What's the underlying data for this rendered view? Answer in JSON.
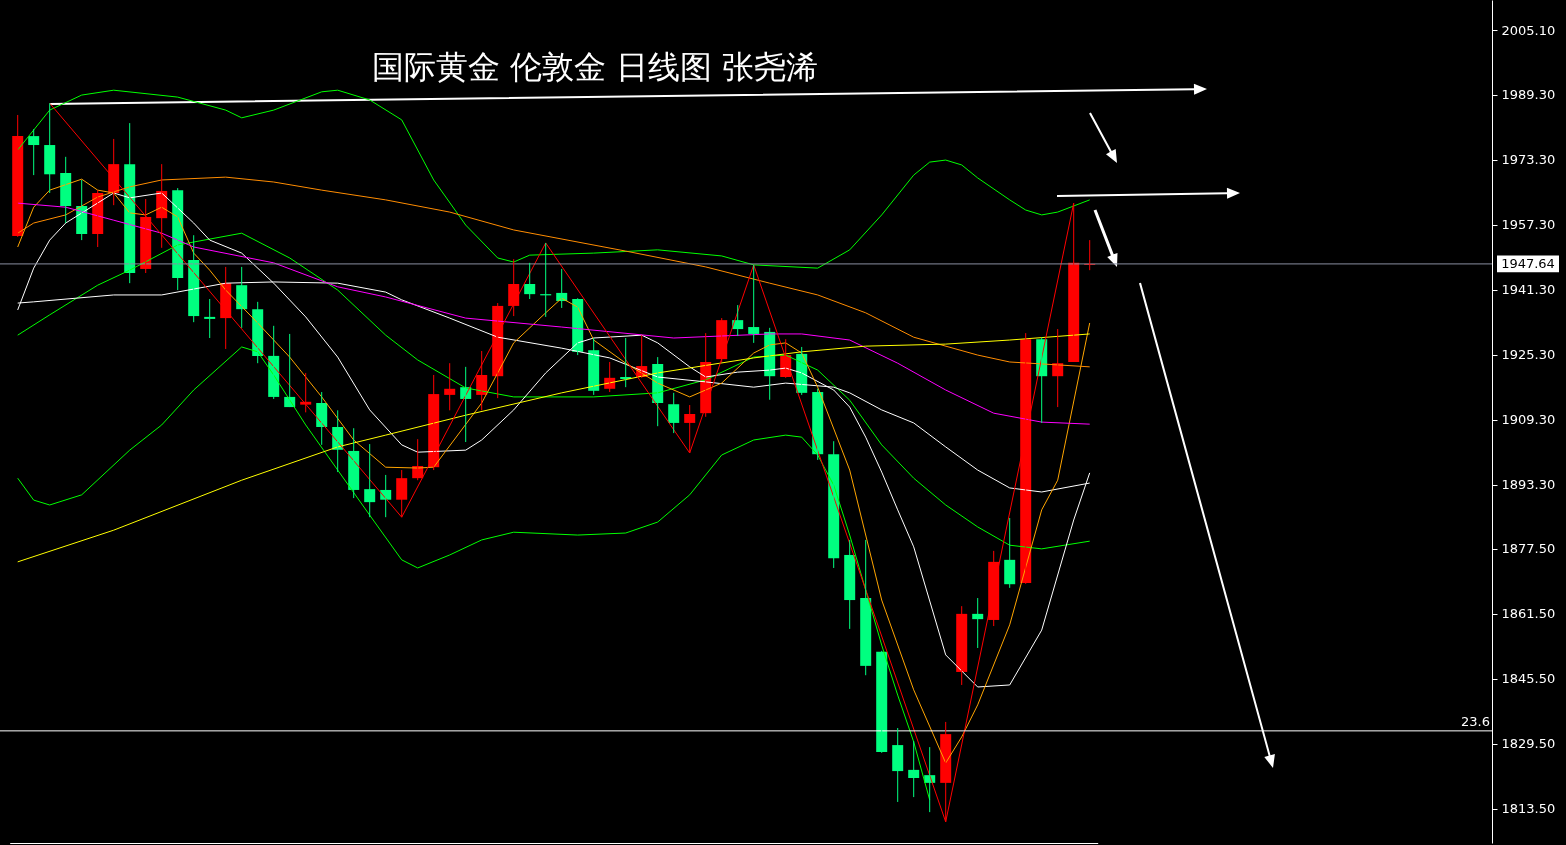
{
  "chart_data": {
    "type": "candlestick",
    "title": "国际黄金 伦敦金 日线图 张尧浠",
    "categories": [
      null,
      null,
      null,
      null,
      null,
      null,
      null,
      null,
      null,
      null,
      null,
      null,
      null,
      null,
      null,
      null,
      null,
      null,
      null,
      null,
      null,
      null,
      null,
      null,
      null,
      null,
      null,
      null,
      null,
      null,
      null,
      null,
      null,
      null,
      null,
      null,
      null,
      null,
      null,
      null,
      null,
      null,
      null,
      null,
      null,
      null,
      null,
      null,
      null,
      null,
      null,
      null,
      null,
      null,
      null,
      null,
      null,
      null,
      null,
      null,
      null,
      null,
      null,
      null,
      null,
      null,
      null,
      null
    ],
    "ohlc": [
      [
        1954.5,
        1984.3,
        1954.3,
        1979.1
      ],
      [
        1979.1,
        1980.8,
        1969.5,
        1976.9
      ],
      [
        1976.9,
        1987.2,
        1965.1,
        1969.7
      ],
      [
        1970.0,
        1974.0,
        1957.7,
        1961.9
      ],
      [
        1961.9,
        1968.3,
        1953.5,
        1955.0
      ],
      [
        1955.0,
        1965.8,
        1951.8,
        1965.1
      ],
      [
        1965.1,
        1978.4,
        1962.1,
        1972.2
      ],
      [
        1972.2,
        1982.3,
        1942.9,
        1945.4
      ],
      [
        1946.4,
        1963.6,
        1945.4,
        1959.2
      ],
      [
        1958.9,
        1972.2,
        1951.6,
        1965.6
      ],
      [
        1965.8,
        1966.3,
        1941.2,
        1944.2
      ],
      [
        1948.6,
        1954.7,
        1933.3,
        1934.8
      ],
      [
        1934.6,
        1939.0,
        1929.4,
        1934.1
      ],
      [
        1934.3,
        1946.9,
        1926.7,
        1942.9
      ],
      [
        1942.4,
        1946.9,
        1931.9,
        1936.5
      ],
      [
        1936.5,
        1938.3,
        1923.2,
        1925.0
      ],
      [
        1925.0,
        1932.4,
        1914.4,
        1914.9
      ],
      [
        1914.9,
        1930.4,
        1912.4,
        1912.4
      ],
      [
        1913.0,
        1920.8,
        1911.1,
        1913.7
      ],
      [
        1913.4,
        1916.1,
        1903.1,
        1907.5
      ],
      [
        1907.5,
        1911.6,
        1896.4,
        1901.9
      ],
      [
        1901.6,
        1907.2,
        1890.0,
        1892.0
      ],
      [
        1892.2,
        1903.3,
        1885.3,
        1889.0
      ],
      [
        1892.0,
        1895.7,
        1885.3,
        1889.6
      ],
      [
        1889.6,
        1896.9,
        1885.3,
        1894.9
      ],
      [
        1894.9,
        1904.5,
        1894.4,
        1897.9
      ],
      [
        1897.6,
        1920.3,
        1896.9,
        1915.6
      ],
      [
        1915.4,
        1923.2,
        1911.6,
        1916.9
      ],
      [
        1917.3,
        1922.3,
        1903.8,
        1914.4
      ],
      [
        1915.4,
        1926.2,
        1911.6,
        1920.3
      ],
      [
        1920.0,
        1938.0,
        1914.6,
        1937.3
      ],
      [
        1937.3,
        1948.8,
        1934.8,
        1942.7
      ],
      [
        1942.7,
        1947.9,
        1939.0,
        1940.2
      ],
      [
        1940.2,
        1952.8,
        1934.6,
        1939.9
      ],
      [
        1940.5,
        1946.4,
        1936.8,
        1938.5
      ],
      [
        1939.0,
        1939.2,
        1925.2,
        1926.0
      ],
      [
        1926.4,
        1929.4,
        1915.4,
        1916.4
      ],
      [
        1916.9,
        1923.5,
        1916.1,
        1919.6
      ],
      [
        1919.8,
        1929.4,
        1917.3,
        1919.3
      ],
      [
        1919.8,
        1930.1,
        1919.6,
        1922.5
      ],
      [
        1923.0,
        1924.7,
        1907.7,
        1913.4
      ],
      [
        1913.1,
        1915.9,
        1906.0,
        1908.5
      ],
      [
        1908.5,
        1912.9,
        1901.1,
        1910.7
      ],
      [
        1910.9,
        1930.6,
        1910.0,
        1923.5
      ],
      [
        1924.2,
        1934.3,
        1923.5,
        1933.8
      ],
      [
        1933.8,
        1937.5,
        1929.9,
        1931.6
      ],
      [
        1932.1,
        1947.4,
        1928.2,
        1930.4
      ],
      [
        1930.9,
        1931.9,
        1914.2,
        1920.0
      ],
      [
        1919.8,
        1929.1,
        1919.6,
        1925.2
      ],
      [
        1925.5,
        1927.2,
        1915.4,
        1915.9
      ],
      [
        1916.1,
        1916.9,
        1899.4,
        1900.8
      ],
      [
        1900.8,
        1904.0,
        1872.8,
        1875.2
      ],
      [
        1876.0,
        1879.7,
        1857.8,
        1864.9
      ],
      [
        1865.4,
        1879.7,
        1846.4,
        1848.7
      ],
      [
        1852.2,
        1852.4,
        1827.3,
        1827.5
      ],
      [
        1829.2,
        1833.4,
        1815.2,
        1822.8
      ],
      [
        1823.1,
        1830.2,
        1816.4,
        1821.1
      ],
      [
        1821.8,
        1828.7,
        1812.7,
        1819.9
      ],
      [
        1819.9,
        1834.9,
        1810.3,
        1831.9
      ],
      [
        1847.2,
        1863.4,
        1844.0,
        1861.5
      ],
      [
        1861.5,
        1865.4,
        1853.1,
        1860.2
      ],
      [
        1860.0,
        1877.0,
        1858.5,
        1874.3
      ],
      [
        1874.8,
        1885.1,
        1867.9,
        1868.8
      ],
      [
        1869.1,
        1930.6,
        1868.9,
        1929.1
      ],
      [
        1929.1,
        1929.6,
        1908.5,
        1920.0
      ],
      [
        1920.0,
        1931.6,
        1912.4,
        1923.2
      ],
      [
        1923.5,
        1962.6,
        1923.5,
        1947.9
      ],
      [
        1947.4,
        1953.5,
        1946.1,
        1947.64
      ]
    ],
    "colors": [
      "#ff0000",
      "#00ff80",
      "#00ff80",
      "#00ff80",
      "#00ff80",
      "#ff0000",
      "#ff0000",
      "#00ff80",
      "#ff0000",
      "#ff0000",
      "#00ff80",
      "#00ff80",
      "#00ff80",
      "#ff0000",
      "#00ff80",
      "#00ff80",
      "#00ff80",
      "#00ff80",
      "#ff0000",
      "#00ff80",
      "#00ff80",
      "#00ff80",
      "#00ff80",
      "#00ff80",
      "#ff0000",
      "#ff0000",
      "#ff0000",
      "#ff0000",
      "#00ff80",
      "#ff0000",
      "#ff0000",
      "#ff0000",
      "#00ff80",
      "#00ff80",
      "#00ff80",
      "#00ff80",
      "#00ff80",
      "#ff0000",
      "#00ff80",
      "#ff0000",
      "#00ff80",
      "#00ff80",
      "#ff0000",
      "#ff0000",
      "#ff0000",
      "#00ff80",
      "#00ff80",
      "#00ff80",
      "#ff0000",
      "#00ff80",
      "#00ff80",
      "#00ff80",
      "#00ff80",
      "#00ff80",
      "#00ff80",
      "#00ff80",
      "#00ff80",
      "#00ff80",
      "#ff0000",
      "#ff0000",
      "#00ff80",
      "#ff0000",
      "#00ff80",
      "#ff0000",
      "#00ff80",
      "#ff0000",
      "#ff0000",
      "#ff0000"
    ],
    "series": [
      {
        "type": "line",
        "color": "#00ff00",
        "values": [
          1975.7,
          null,
          1985.5,
          null,
          1989.2,
          null,
          1990.4,
          null,
          null,
          null,
          1988.7,
          null,
          null,
          1985.5,
          1983.6,
          null,
          1985.5,
          null,
          null,
          1990.0,
          1990.4,
          null,
          1988.0,
          null,
          1983.1,
          null,
          1968.3,
          null,
          1957.2,
          null,
          1949.1,
          1948.1,
          1949.8,
          null,
          null,
          null,
          1950.3,
          null,
          null,
          null,
          1951.1,
          null,
          null,
          null,
          1949.6,
          null,
          1947.4,
          null,
          null,
          null,
          1946.6,
          null,
          1951.1,
          null,
          1959.7,
          null,
          1969.5,
          1972.7,
          1973.2,
          1972.0,
          1968.8,
          null,
          1963.4,
          1960.9,
          1959.7,
          1960.4,
          null,
          1963.4
        ]
      },
      {
        "type": "line",
        "color": "#00ff00",
        "values": [
          1930.1,
          null,
          1935.1,
          null,
          null,
          1942.4,
          null,
          1946.1,
          null,
          null,
          1952.3,
          null,
          null,
          null,
          1955.2,
          null,
          null,
          1949.1,
          null,
          null,
          1941.2,
          null,
          null,
          1930.1,
          null,
          1924.0,
          null,
          null,
          1917.1,
          null,
          null,
          1914.9,
          null,
          null,
          null,
          null,
          1914.9,
          null,
          null,
          null,
          1915.9,
          null,
          null,
          1919.1,
          null,
          null,
          1924.7,
          null,
          1925.2,
          null,
          1921.5,
          null,
          1914.1,
          null,
          1903.1,
          null,
          1894.9,
          null,
          1888.3,
          null,
          1882.9,
          null,
          1878.4,
          null,
          1877.5,
          null,
          null,
          1879.4
        ]
      },
      {
        "type": "line",
        "color": "#00ff00",
        "values": [
          1894.9,
          1889.5,
          1888.3,
          null,
          1890.8,
          null,
          null,
          1901.8,
          null,
          1908.0,
          null,
          1916.6,
          null,
          null,
          1927.2,
          1926.0,
          1920.3,
          null,
          1908.0,
          null,
          1896.9,
          null,
          1885.8,
          null,
          1874.8,
          1872.8,
          null,
          1876.0,
          null,
          1879.7,
          null,
          1881.6,
          null,
          null,
          null,
          1880.9,
          null,
          null,
          1881.4,
          null,
          1884.1,
          null,
          1890.8,
          null,
          1900.6,
          null,
          1904.3,
          null,
          1905.5,
          1905.0,
          1900.6,
          1893.2,
          1880.9,
          1867.4,
          1853.8,
          1841.5,
          1830.0,
          1815.7,
          null,
          null,
          null,
          null,
          null,
          null,
          null,
          null,
          null,
          null
        ]
      },
      {
        "type": "line",
        "color": "#ffffff",
        "values": [
          1936.3,
          1946.6,
          1953.5,
          1957.7,
          null,
          null,
          1965.1,
          1963.9,
          null,
          1965.1,
          null,
          1957.7,
          1953.5,
          null,
          1950.3,
          null,
          1942.9,
          null,
          1934.6,
          null,
          1924.7,
          null,
          1911.7,
          null,
          1903.1,
          1901.3,
          null,
          null,
          1901.8,
          1904.3,
          null,
          1911.7,
          null,
          1920.8,
          null,
          1928.2,
          1929.4,
          null,
          null,
          1930.1,
          1928.2,
          null,
          1922.3,
          1919.8,
          null,
          1921.0,
          null,
          1921.5,
          1922.0,
          1920.8,
          null,
          1916.6,
          1912.4,
          1905.0,
          1896.4,
          1887.1,
          1878.0,
          null,
          1851.4,
          null,
          1843.5,
          null,
          1844.0,
          null,
          1857.5,
          null,
          1884.6,
          1896.2
        ]
      },
      {
        "type": "line",
        "color": "#ffffff",
        "values": [
          1938.0,
          1938.3,
          null,
          null,
          null,
          null,
          1940.0,
          null,
          null,
          1940.0,
          null,
          null,
          null,
          1942.9,
          null,
          null,
          1943.2,
          null,
          null,
          null,
          1942.9,
          null,
          null,
          1940.7,
          1938.8,
          null,
          null,
          1934.3,
          null,
          null,
          1929.6,
          null,
          null,
          null,
          1926.9,
          null,
          null,
          1924.5,
          null,
          null,
          1919.8,
          null,
          null,
          1918.6,
          null,
          null,
          1917.3,
          null,
          1918.3,
          null,
          null,
          1917.3,
          1915.9,
          null,
          1911.7,
          null,
          1908.5,
          null,
          1902.6,
          null,
          1896.9,
          null,
          1892.5,
          null,
          1891.5,
          null,
          null,
          1893.7
        ]
      },
      {
        "type": "line",
        "color": "#ffa500",
        "values": [
          1951.8,
          1961.6,
          1965.8,
          null,
          1968.5,
          1965.8,
          1965.1,
          1960.2,
          1959.7,
          1961.6,
          1959.2,
          1950.3,
          1946.1,
          1941.2,
          null,
          1933.1,
          null,
          1924.7,
          null,
          1914.9,
          null,
          1904.3,
          null,
          1897.6,
          null,
          1897.4,
          1897.6,
          null,
          null,
          1913.4,
          null,
          1928.2,
          null,
          1935.6,
          1939.2,
          1937.0,
          1928.9,
          null,
          1923.2,
          null,
          1918.3,
          null,
          1914.9,
          null,
          1918.3,
          null,
          1925.7,
          1927.7,
          1928.2,
          1925.7,
          1917.3,
          null,
          1896.9,
          null,
          1864.9,
          null,
          1842.8,
          null,
          1824.8,
          1831.2,
          1839.1,
          null,
          1858.8,
          null,
          1887.1,
          1894.4,
          null,
          1933.1
        ]
      },
      {
        "type": "line",
        "color": "#ff8c00",
        "values": [
          1955.2,
          1957.7,
          null,
          1959.7,
          null,
          1964.1,
          null,
          1966.6,
          null,
          1968.3,
          null,
          null,
          null,
          1969.0,
          null,
          null,
          1967.8,
          null,
          null,
          1965.8,
          null,
          null,
          null,
          1963.4,
          null,
          null,
          null,
          1960.4,
          null,
          null,
          null,
          1956.0,
          null,
          null,
          null,
          null,
          null,
          null,
          1950.8,
          null,
          null,
          null,
          null,
          1946.9,
          null,
          null,
          null,
          1942.9,
          null,
          null,
          1940.0,
          null,
          null,
          1935.6,
          null,
          null,
          1929.6,
          null,
          null,
          null,
          1925.2,
          null,
          1923.5,
          null,
          null,
          null,
          null,
          1922.3
        ]
      },
      {
        "type": "line",
        "color": "#ff00ff",
        "values": [
          1962.6,
          null,
          null,
          1961.6,
          null,
          null,
          1958.4,
          null,
          null,
          1955.2,
          null,
          1951.8,
          null,
          null,
          null,
          null,
          1947.9,
          null,
          null,
          null,
          1942.0,
          null,
          null,
          1939.5,
          null,
          null,
          null,
          null,
          1934.3,
          null,
          null,
          null,
          null,
          null,
          1932.1,
          null,
          null,
          null,
          null,
          null,
          null,
          1929.4,
          null,
          null,
          null,
          null,
          null,
          1930.4,
          null,
          1930.4,
          null,
          null,
          1928.9,
          null,
          null,
          1923.2,
          null,
          null,
          1916.6,
          null,
          null,
          1910.9,
          null,
          null,
          1908.7,
          null,
          null,
          1908.2
        ]
      },
      {
        "type": "line",
        "color": "#ffff00",
        "values": [
          1874.3,
          null,
          null,
          null,
          null,
          null,
          1882.1,
          null,
          null,
          null,
          null,
          null,
          null,
          null,
          1894.4,
          null,
          null,
          null,
          null,
          null,
          1902.6,
          null,
          null,
          1905.5,
          null,
          null,
          null,
          null,
          1910.4,
          null,
          null,
          null,
          null,
          null,
          1915.9,
          null,
          null,
          null,
          null,
          null,
          1920.8,
          null,
          null,
          null,
          null,
          null,
          1924.5,
          null,
          null,
          1926.0,
          null,
          null,
          null,
          1927.4,
          null,
          null,
          null,
          null,
          1927.9,
          null,
          null,
          null,
          1928.9,
          null,
          null,
          null,
          null,
          1930.4
        ]
      },
      {
        "type": "line",
        "color": "#ff0000",
        "values": [
          null,
          null,
          1987.2,
          null,
          null,
          null,
          null,
          null,
          null,
          null,
          null,
          null,
          null,
          null,
          null,
          null,
          null,
          null,
          null,
          null,
          null,
          null,
          null,
          null,
          1885.3,
          null,
          null,
          null,
          null,
          null,
          null,
          null,
          null,
          1952.8,
          null,
          null,
          null,
          null,
          null,
          null,
          null,
          null,
          1901.1,
          null,
          null,
          null,
          1947.4,
          null,
          null,
          null,
          null,
          null,
          null,
          null,
          null,
          null,
          null,
          null,
          1810.3,
          null,
          null,
          null,
          null,
          null,
          null,
          null,
          1962.6,
          null
        ]
      }
    ],
    "ylim": [
      1805.1,
      2012.6
    ],
    "yticks": [
      {
        "value": 2005.1,
        "label": "2005.10"
      },
      {
        "value": 1989.3,
        "label": "1989.30"
      },
      {
        "value": 1973.3,
        "label": "1973.30"
      },
      {
        "value": 1957.3,
        "label": "1957.30"
      },
      {
        "value": 1941.3,
        "label": "1941.30"
      },
      {
        "value": 1925.3,
        "label": "1925.30"
      },
      {
        "value": 1909.3,
        "label": "1909.30"
      },
      {
        "value": 1893.3,
        "label": "1893.30"
      },
      {
        "value": 1877.5,
        "label": "1877.50"
      },
      {
        "value": 1861.5,
        "label": "1861.50"
      },
      {
        "value": 1845.5,
        "label": "1845.50"
      },
      {
        "value": 1829.5,
        "label": "1829.50"
      },
      {
        "value": 1813.5,
        "label": "1813.50"
      }
    ],
    "ref_lines": [
      {
        "axis": "y",
        "value": 1947.64,
        "label": "1947.64",
        "color": "#8a8fa0"
      },
      {
        "axis": "y",
        "value": 1832.7,
        "color": "#ffffff"
      }
    ],
    "annotations": [
      {
        "text": "23.6",
        "y": 1832.7
      }
    ],
    "tick_labels": "y"
  }
}
